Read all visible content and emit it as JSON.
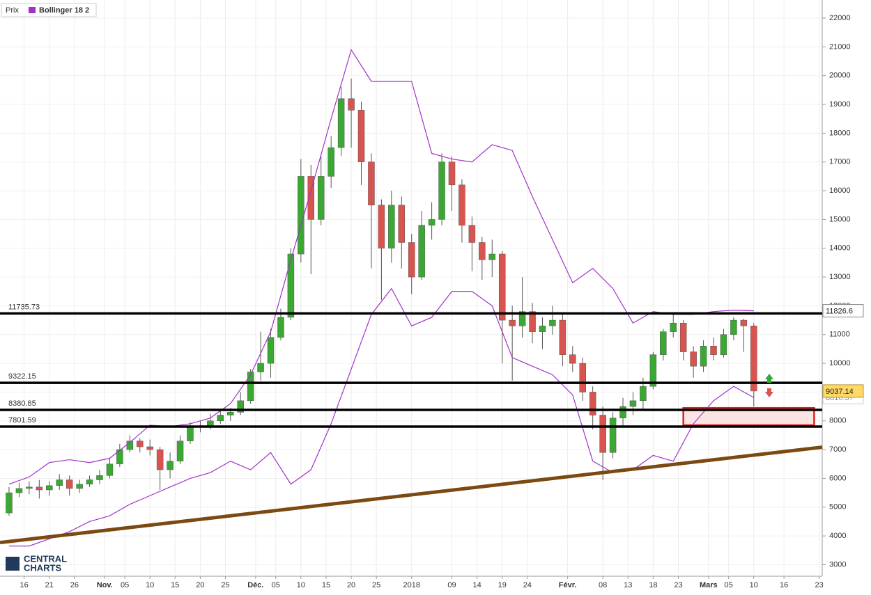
{
  "chart_data": {
    "type": "candlestick",
    "legend": {
      "position": "top-left"
    },
    "logo": [
      "CENTRAL",
      "CHARTS"
    ],
    "xlim": [
      -0.8,
      162.6
    ],
    "ylim": [
      2600,
      22630
    ],
    "yticks": [
      3000,
      4000,
      5000,
      6000,
      7000,
      8000,
      9000,
      10000,
      11000,
      12000,
      13000,
      14000,
      15000,
      16000,
      17000,
      18000,
      19000,
      20000,
      21000,
      22000
    ],
    "xticks": [
      {
        "value": 4,
        "label": "16"
      },
      {
        "value": 9,
        "label": "21"
      },
      {
        "value": 14,
        "label": "26"
      },
      {
        "value": 20,
        "label": "Nov."
      },
      {
        "value": 24,
        "label": "05"
      },
      {
        "value": 29,
        "label": "10"
      },
      {
        "value": 34,
        "label": "15"
      },
      {
        "value": 39,
        "label": "20"
      },
      {
        "value": 44,
        "label": "25"
      },
      {
        "value": 50,
        "label": "Déc."
      },
      {
        "value": 54,
        "label": "05"
      },
      {
        "value": 59,
        "label": "10"
      },
      {
        "value": 64,
        "label": "15"
      },
      {
        "value": 69,
        "label": "20"
      },
      {
        "value": 74,
        "label": "25"
      },
      {
        "value": 81,
        "label": "2018"
      },
      {
        "value": 89,
        "label": "09"
      },
      {
        "value": 94,
        "label": "14"
      },
      {
        "value": 99,
        "label": "19"
      },
      {
        "value": 104,
        "label": "24"
      },
      {
        "value": 112,
        "label": "Févr."
      },
      {
        "value": 119,
        "label": "08"
      },
      {
        "value": 124,
        "label": "13"
      },
      {
        "value": 129,
        "label": "18"
      },
      {
        "value": 134,
        "label": "23"
      },
      {
        "value": 140,
        "label": "Mars"
      },
      {
        "value": 144,
        "label": "05"
      },
      {
        "value": 149,
        "label": "10"
      },
      {
        "value": 155,
        "label": "16"
      },
      {
        "value": 162,
        "label": "23"
      }
    ],
    "grid": true,
    "up_color": "#3aa832",
    "down_color": "#d9534f",
    "series": [
      {
        "name": "Prix",
        "x": [
          1,
          3,
          5,
          7,
          9,
          11,
          13,
          15,
          17,
          19,
          21,
          23,
          25,
          27,
          29,
          31,
          33,
          35,
          37,
          39,
          41,
          43,
          45,
          47,
          49,
          51,
          53,
          55,
          57,
          59,
          61,
          63,
          65,
          67,
          69,
          71,
          73,
          75,
          77,
          79,
          81,
          83,
          85,
          87,
          89,
          91,
          93,
          95,
          97,
          99,
          101,
          103,
          105,
          107,
          109,
          111,
          113,
          115,
          117,
          119,
          121,
          123,
          125,
          127,
          129,
          131,
          133,
          135,
          137,
          139,
          141,
          143,
          145,
          147,
          149
        ],
        "open": [
          4800,
          5500,
          5650,
          5700,
          5600,
          5750,
          5950,
          5650,
          5800,
          5950,
          6100,
          6500,
          7000,
          7300,
          7100,
          7000,
          6300,
          6600,
          7300,
          7800,
          7800,
          8000,
          8200,
          8300,
          8700,
          9700,
          10000,
          10900,
          11600,
          13800,
          16500,
          15000,
          16500,
          17500,
          19200,
          18800,
          17000,
          15500,
          14000,
          15500,
          14200,
          13000,
          14800,
          15000,
          17000,
          16200,
          14800,
          14200,
          13600,
          13800,
          11500,
          11300,
          11800,
          11100,
          11300,
          11500,
          10300,
          10000,
          9000,
          8200,
          6900,
          8100,
          8500,
          8700,
          9200,
          10300,
          11100,
          11400,
          10400,
          9900,
          10600,
          10300,
          11000,
          11500,
          11300
        ],
        "high": [
          5700,
          5850,
          5900,
          5950,
          5900,
          6150,
          6100,
          5950,
          6100,
          6300,
          6700,
          7200,
          7500,
          7400,
          7350,
          7100,
          6900,
          7500,
          7950,
          8000,
          8250,
          8350,
          8450,
          9000,
          9800,
          11100,
          11200,
          11900,
          14000,
          17100,
          16900,
          17200,
          17900,
          19600,
          19900,
          19100,
          17300,
          15700,
          16000,
          15800,
          14500,
          15300,
          15600,
          17300,
          17200,
          16400,
          15100,
          14400,
          14300,
          13900,
          12000,
          13000,
          12100,
          11600,
          12000,
          11700,
          10600,
          10200,
          9200,
          8500,
          8300,
          8800,
          9000,
          9500,
          10400,
          11200,
          11750,
          11500,
          10600,
          10800,
          10900,
          11200,
          11600,
          11550,
          11400
        ],
        "low": [
          4700,
          5350,
          5450,
          5300,
          5400,
          5600,
          5400,
          5500,
          5700,
          5800,
          6000,
          6400,
          6900,
          6900,
          6800,
          5600,
          6000,
          6500,
          7200,
          7600,
          7700,
          7900,
          8000,
          8200,
          8600,
          9400,
          9500,
          10800,
          11500,
          13500,
          13100,
          14800,
          16100,
          17200,
          17500,
          16200,
          13300,
          12200,
          13500,
          13300,
          12400,
          12900,
          14300,
          14800,
          15300,
          14200,
          13200,
          12900,
          13000,
          10000,
          9400,
          10900,
          10700,
          10500,
          11000,
          9900,
          9700,
          8700,
          7700,
          5950,
          6700,
          7800,
          8200,
          8400,
          9100,
          10100,
          10900,
          10100,
          9500,
          9700,
          10100,
          10200,
          10800,
          10400,
          8500
        ],
        "close": [
          5500,
          5650,
          5700,
          5600,
          5750,
          5950,
          5650,
          5800,
          5950,
          6100,
          6500,
          7000,
          7300,
          7100,
          7000,
          6300,
          6600,
          7300,
          7800,
          7800,
          8000,
          8200,
          8300,
          8700,
          9700,
          10000,
          10900,
          11600,
          13800,
          16500,
          15000,
          16500,
          17500,
          19200,
          18800,
          17000,
          15500,
          14000,
          15500,
          14200,
          13000,
          14800,
          15000,
          17000,
          16200,
          14800,
          14200,
          13600,
          13800,
          11500,
          11300,
          11800,
          11100,
          11300,
          11500,
          10300,
          10000,
          9000,
          8200,
          6900,
          8100,
          8500,
          8700,
          9200,
          10300,
          11100,
          11400,
          10400,
          9900,
          10600,
          10300,
          11000,
          11500,
          11300,
          9037.14
        ]
      },
      {
        "name": "Bollinger 18 2",
        "color": "#a032c8",
        "x": [
          1,
          5,
          9,
          13,
          17,
          21,
          25,
          29,
          33,
          37,
          41,
          45,
          49,
          53,
          57,
          61,
          65,
          69,
          73,
          77,
          81,
          85,
          89,
          93,
          97,
          101,
          105,
          109,
          113,
          117,
          121,
          125,
          129,
          133,
          137,
          141,
          145,
          149
        ],
        "upper": [
          5800,
          6050,
          6550,
          6650,
          6550,
          6700,
          7250,
          7850,
          7800,
          7900,
          8100,
          8600,
          9600,
          11100,
          13600,
          16000,
          18500,
          20900,
          19800,
          19800,
          19800,
          17300,
          17100,
          17000,
          17600,
          17400,
          15800,
          14300,
          12800,
          13300,
          12600,
          11400,
          11800,
          11700,
          11700,
          11800,
          11850,
          11826.6
        ],
        "lower": [
          3650,
          3650,
          3900,
          4150,
          4500,
          4700,
          5100,
          5400,
          5700,
          6000,
          6200,
          6600,
          6300,
          6900,
          5800,
          6300,
          7900,
          9800,
          11700,
          12600,
          11300,
          11600,
          12500,
          12500,
          12000,
          10200,
          9900,
          9600,
          8900,
          6600,
          6200,
          6300,
          6800,
          6600,
          7900,
          8700,
          9200,
          8810.37
        ]
      }
    ],
    "levels": [
      11735.73,
      9322.15,
      8380.85,
      7801.59
    ],
    "trendline": {
      "x": [
        -0.8,
        162.6
      ],
      "y": [
        3770,
        7085
      ],
      "color": "#7b4a12"
    },
    "zone": {
      "x": [
        135,
        161
      ],
      "y": [
        7850,
        8450
      ],
      "color": "#e02020"
    },
    "price_tags": [
      11826.6,
      9037.14,
      8810.37
    ]
  }
}
